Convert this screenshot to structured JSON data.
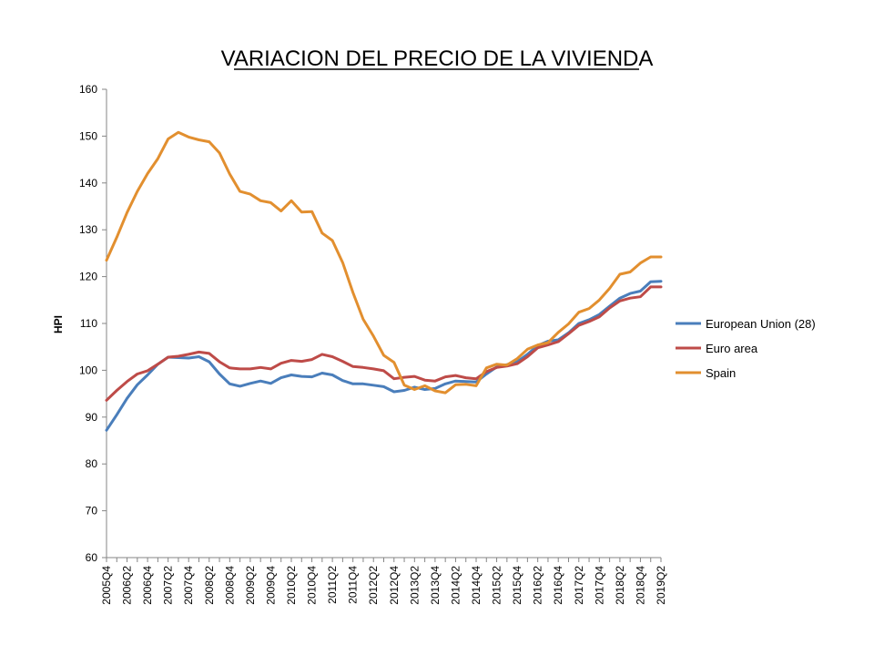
{
  "chart_data": {
    "type": "line",
    "title": "VARIACION DEL PRECIO DE LA VIVIENDA",
    "xlabel": "",
    "ylabel": "HPI",
    "ylim": [
      60,
      160
    ],
    "yticks": [
      60,
      70,
      80,
      90,
      100,
      110,
      120,
      130,
      140,
      150,
      160
    ],
    "grid": false,
    "legend_position": "right",
    "x": [
      "2005Q4",
      "2006Q1",
      "2006Q2",
      "2006Q3",
      "2006Q4",
      "2007Q1",
      "2007Q2",
      "2007Q3",
      "2007Q4",
      "2008Q1",
      "2008Q2",
      "2008Q3",
      "2008Q4",
      "2009Q1",
      "2009Q2",
      "2009Q3",
      "2009Q4",
      "2010Q1",
      "2010Q2",
      "2010Q3",
      "2010Q4",
      "2011Q1",
      "2011Q2",
      "2011Q3",
      "2011Q4",
      "2012Q1",
      "2012Q2",
      "2012Q3",
      "2012Q4",
      "2013Q1",
      "2013Q2",
      "2013Q3",
      "2013Q4",
      "2014Q1",
      "2014Q2",
      "2014Q3",
      "2014Q4",
      "2015Q1",
      "2015Q2",
      "2015Q3",
      "2015Q4",
      "2016Q1",
      "2016Q2",
      "2016Q3",
      "2016Q4",
      "2017Q1",
      "2017Q2",
      "2017Q3",
      "2017Q4",
      "2018Q1",
      "2018Q2",
      "2018Q3",
      "2018Q4",
      "2019Q1",
      "2019Q2"
    ],
    "tick_labels": [
      "2005Q4",
      "2006Q2",
      "2006Q4",
      "2007Q2",
      "2007Q4",
      "2008Q2",
      "2008Q4",
      "2009Q2",
      "2009Q4",
      "2010Q2",
      "2010Q4",
      "2011Q2",
      "2011Q4",
      "2012Q2",
      "2012Q4",
      "2013Q2",
      "2013Q4",
      "2014Q2",
      "2014Q4",
      "2015Q2",
      "2015Q4",
      "2016Q2",
      "2016Q4",
      "2017Q2",
      "2017Q4",
      "2018Q2",
      "2018Q4",
      "2019Q2"
    ],
    "series": [
      {
        "name": "European Union (28)",
        "color": "#4a7ebb",
        "values": [
          87.2,
          90.5,
          94.0,
          96.9,
          99.0,
          101.3,
          102.8,
          102.7,
          102.6,
          102.9,
          101.8,
          99.2,
          97.1,
          96.6,
          97.2,
          97.7,
          97.2,
          98.4,
          99.0,
          98.7,
          98.6,
          99.4,
          99.0,
          97.8,
          97.1,
          97.1,
          96.8,
          96.5,
          95.4,
          95.7,
          96.4,
          95.9,
          96.1,
          97.1,
          97.7,
          97.6,
          97.5,
          99.2,
          100.7,
          101.2,
          101.8,
          103.4,
          105.3,
          106.2,
          106.5,
          108.0,
          110.0,
          110.8,
          111.9,
          113.7,
          115.4,
          116.4,
          116.9,
          118.9,
          119.0
        ]
      },
      {
        "name": "Euro area",
        "color": "#be4b48",
        "values": [
          93.6,
          95.7,
          97.6,
          99.2,
          99.9,
          101.3,
          102.8,
          103.0,
          103.4,
          103.9,
          103.6,
          101.8,
          100.5,
          100.3,
          100.3,
          100.6,
          100.3,
          101.5,
          102.1,
          101.9,
          102.3,
          103.4,
          102.9,
          101.9,
          100.8,
          100.6,
          100.3,
          99.9,
          98.2,
          98.5,
          98.7,
          97.9,
          97.7,
          98.6,
          98.9,
          98.4,
          98.2,
          99.7,
          100.6,
          100.9,
          101.4,
          102.9,
          104.8,
          105.4,
          106.1,
          107.8,
          109.6,
          110.4,
          111.4,
          113.3,
          114.8,
          115.4,
          115.7,
          117.8,
          117.8
        ]
      },
      {
        "name": "Spain",
        "color": "#e28f2f",
        "values": [
          123.5,
          128.4,
          133.7,
          138.2,
          142.0,
          145.2,
          149.4,
          150.8,
          149.8,
          149.2,
          148.8,
          146.4,
          141.9,
          138.2,
          137.6,
          136.2,
          135.8,
          134.0,
          136.2,
          133.8,
          133.9,
          129.3,
          127.7,
          123.0,
          116.6,
          110.9,
          107.3,
          103.2,
          101.7,
          96.8,
          95.9,
          96.7,
          95.6,
          95.2,
          96.9,
          97.0,
          96.7,
          100.5,
          101.3,
          101.1,
          102.5,
          104.5,
          105.4,
          105.9,
          108.1,
          109.9,
          112.4,
          113.2,
          115.0,
          117.5,
          120.5,
          121.0,
          122.9,
          124.2,
          124.2
        ]
      }
    ]
  }
}
